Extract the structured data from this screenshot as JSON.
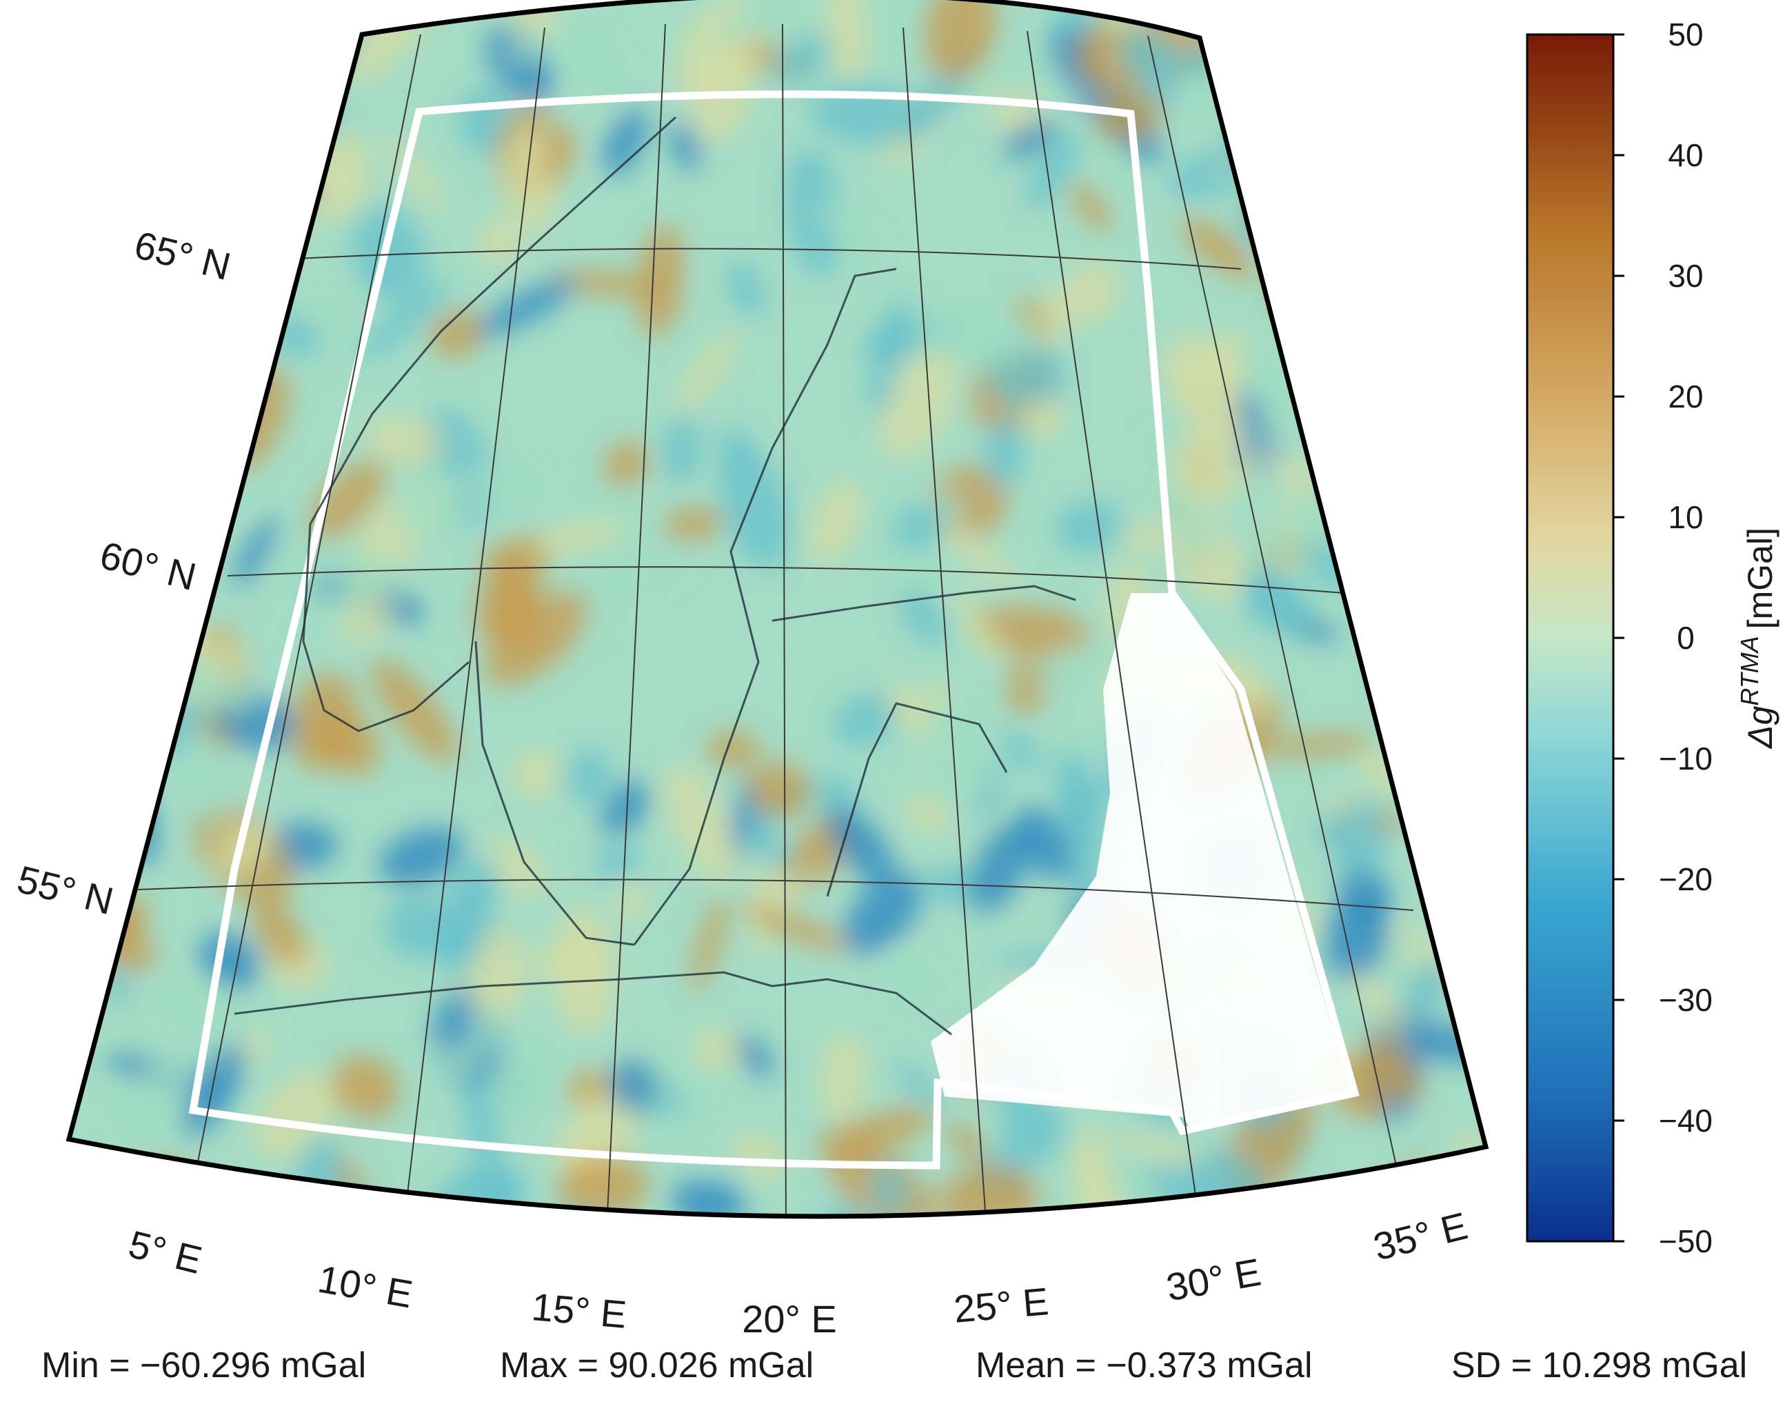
{
  "map": {
    "lat_labels": [
      "65° N",
      "60° N",
      "55° N"
    ],
    "lon_labels": [
      "5° E",
      "10° E",
      "15° E",
      "20° E",
      "25° E",
      "30° E",
      "35° E"
    ],
    "field_colors": [
      "#9fdcc3",
      "#d7dca3",
      "#65c0cc",
      "#c79a4c",
      "#2a84c0"
    ]
  },
  "colorbar": {
    "ticks": [
      "50",
      "40",
      "30",
      "20",
      "10",
      "0",
      "−10",
      "−20",
      "−30",
      "−40",
      "−50"
    ],
    "title_main": "Δg",
    "title_sup": "RTMA",
    "title_unit": "[mGal]",
    "colors": [
      "#0a2e8c",
      "#1f6fb8",
      "#3aa6d0",
      "#8ed7d6",
      "#c6e6c6",
      "#e2d7a0",
      "#d3a964",
      "#b8752a",
      "#8e3b12",
      "#7a1a08"
    ]
  },
  "stats": {
    "min": "Min = −60.296 mGal",
    "max": "Max = 90.026 mGal",
    "mean": "Mean = −0.373 mGal",
    "sd": "SD = 10.298 mGal"
  }
}
